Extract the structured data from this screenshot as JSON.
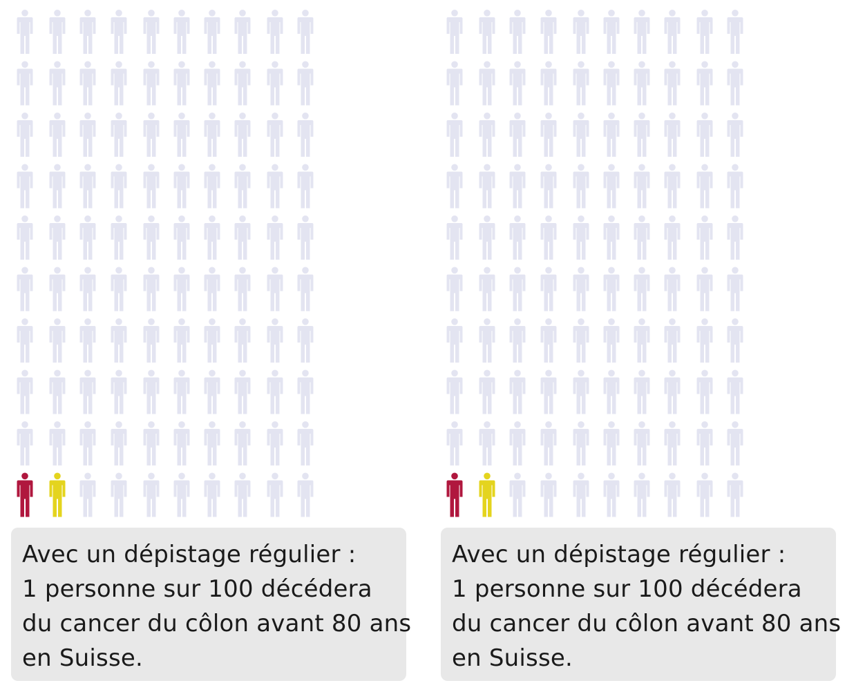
{
  "chart_data": [
    {
      "type": "pictogram",
      "total": 100,
      "columns": 10,
      "rows": 10,
      "counts": {
        "red": 1,
        "yellow": 1,
        "grey": 98
      },
      "colors": {
        "grey": "#e3e4f1",
        "red": "#b0173e",
        "yellow": "#e4d41e",
        "caption_bg": "#e8e8e8"
      },
      "highlighted_positions": [
        {
          "row": 10,
          "col": 1,
          "color": "red"
        },
        {
          "row": 10,
          "col": 2,
          "color": "yellow"
        }
      ],
      "caption": {
        "lines": [
          "Avec un dépistage régulier :",
          "1 personne sur 100 décédera",
          "du cancer du côlon avant 80 ans",
          "en Suisse."
        ]
      }
    },
    {
      "type": "pictogram",
      "total": 100,
      "columns": 10,
      "rows": 10,
      "counts": {
        "red": 1,
        "yellow": 1,
        "grey": 98
      },
      "colors": {
        "grey": "#e3e4f1",
        "red": "#b0173e",
        "yellow": "#e4d41e",
        "caption_bg": "#e8e8e8"
      },
      "highlighted_positions": [
        {
          "row": 10,
          "col": 1,
          "color": "red"
        },
        {
          "row": 10,
          "col": 2,
          "color": "yellow"
        }
      ],
      "caption": {
        "lines": [
          "Avec un dépistage régulier :",
          "1 personne sur 100 décédera",
          "du cancer du côlon avant 80 ans",
          "en Suisse."
        ]
      }
    }
  ]
}
